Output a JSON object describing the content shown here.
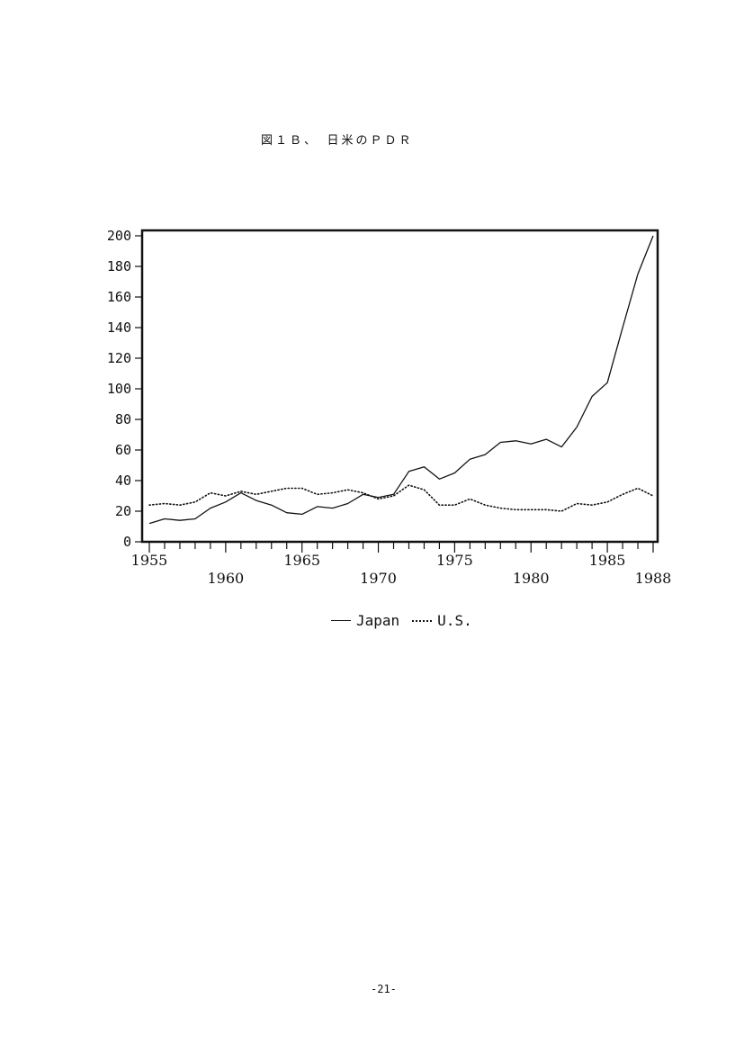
{
  "page": {
    "figure_title": "図１Ｂ、　日米のＰＤＲ",
    "page_number": "-21-"
  },
  "chart_data": {
    "type": "line",
    "title": "図１Ｂ、　日米のＰＤＲ",
    "xlabel": "",
    "ylabel": "",
    "ylim": [
      0,
      200
    ],
    "xlim": [
      1955,
      1988
    ],
    "yticks": [
      0,
      20,
      40,
      60,
      80,
      100,
      120,
      140,
      160,
      180,
      200
    ],
    "xtick_labels": [
      "1955",
      "1960",
      "1965",
      "1970",
      "1975",
      "1980",
      "1985",
      "1988"
    ],
    "grid": false,
    "legend_position": "bottom-center",
    "x": [
      1955,
      1956,
      1957,
      1958,
      1959,
      1960,
      1961,
      1962,
      1963,
      1964,
      1965,
      1966,
      1967,
      1968,
      1969,
      1970,
      1971,
      1972,
      1973,
      1974,
      1975,
      1976,
      1977,
      1978,
      1979,
      1980,
      1981,
      1982,
      1983,
      1984,
      1985,
      1986,
      1987,
      1988
    ],
    "series": [
      {
        "name": "Japan",
        "style": "solid",
        "values": [
          12,
          15,
          14,
          15,
          22,
          26,
          32,
          27,
          24,
          19,
          18,
          23,
          22,
          25,
          31,
          29,
          31,
          46,
          49,
          41,
          45,
          54,
          57,
          65,
          66,
          64,
          67,
          62,
          75,
          95,
          104,
          140,
          175,
          200
        ]
      },
      {
        "name": "U.S.",
        "style": "dotted",
        "values": [
          24,
          25,
          24,
          26,
          32,
          30,
          33,
          31,
          33,
          35,
          35,
          31,
          32,
          34,
          32,
          28,
          30,
          37,
          34,
          24,
          24,
          28,
          24,
          22,
          21,
          21,
          21,
          20,
          25,
          24,
          26,
          31,
          35,
          30
        ]
      }
    ]
  }
}
